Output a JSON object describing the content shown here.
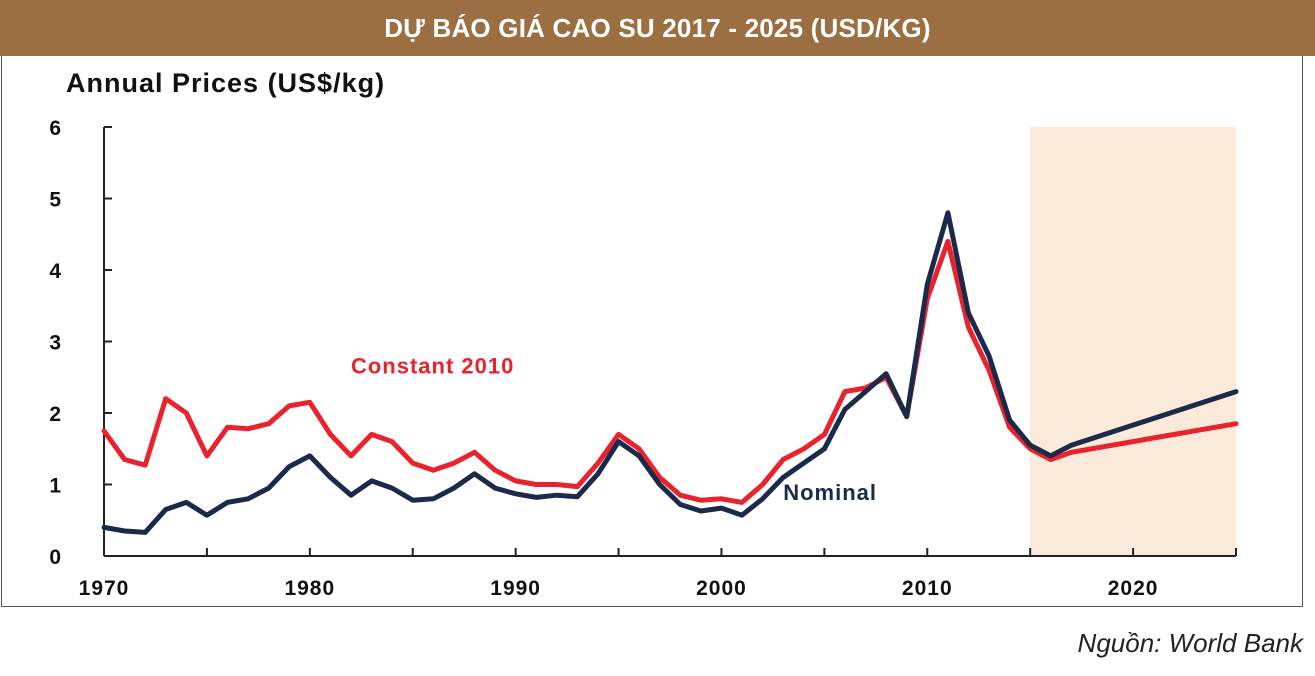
{
  "banner": {
    "title": "DỰ BÁO GIÁ CAO SU 2017 - 2025 (USD/KG)",
    "color": "#9b6f42"
  },
  "source": "Nguồn: World Bank",
  "chart_data": {
    "type": "line",
    "ylabel": "Annual Prices (US$/kg)",
    "ylim": [
      0,
      6
    ],
    "xlim": [
      1970,
      2025
    ],
    "y_ticks": [
      "0",
      "1",
      "2",
      "3",
      "4",
      "5",
      "6"
    ],
    "x_ticks": [
      "1970",
      "1980",
      "1990",
      "2000",
      "2010",
      "2020"
    ],
    "forecast_shading": {
      "from": 2015,
      "to": 2025,
      "color": "#fbe9da"
    },
    "grid": false,
    "series": [
      {
        "name": "Constant 2010",
        "color": "#e8232e",
        "x": [
          1970,
          1971,
          1972,
          1973,
          1974,
          1975,
          1976,
          1977,
          1978,
          1979,
          1980,
          1981,
          1982,
          1983,
          1984,
          1985,
          1986,
          1987,
          1988,
          1989,
          1990,
          1991,
          1992,
          1993,
          1994,
          1995,
          1996,
          1997,
          1998,
          1999,
          2000,
          2001,
          2002,
          2003,
          2004,
          2005,
          2006,
          2007,
          2008,
          2009,
          2010,
          2011,
          2012,
          2013,
          2014,
          2015,
          2016,
          2017,
          2025
        ],
        "values": [
          1.75,
          1.35,
          1.27,
          2.2,
          2.0,
          1.4,
          1.8,
          1.78,
          1.85,
          2.1,
          2.15,
          1.7,
          1.4,
          1.7,
          1.6,
          1.3,
          1.2,
          1.3,
          1.45,
          1.2,
          1.05,
          1.0,
          1.0,
          0.97,
          1.3,
          1.7,
          1.5,
          1.1,
          0.85,
          0.78,
          0.8,
          0.75,
          1.0,
          1.35,
          1.5,
          1.7,
          2.3,
          2.35,
          2.5,
          1.95,
          3.6,
          4.4,
          3.2,
          2.6,
          1.8,
          1.5,
          1.35,
          1.45,
          1.85
        ]
      },
      {
        "name": "Nominal",
        "color": "#1a2a4a",
        "x": [
          1970,
          1971,
          1972,
          1973,
          1974,
          1975,
          1976,
          1977,
          1978,
          1979,
          1980,
          1981,
          1982,
          1983,
          1984,
          1985,
          1986,
          1987,
          1988,
          1989,
          1990,
          1991,
          1992,
          1993,
          1994,
          1995,
          1996,
          1997,
          1998,
          1999,
          2000,
          2001,
          2002,
          2003,
          2004,
          2005,
          2006,
          2007,
          2008,
          2009,
          2010,
          2011,
          2012,
          2013,
          2014,
          2015,
          2016,
          2017,
          2025
        ],
        "values": [
          0.4,
          0.35,
          0.33,
          0.65,
          0.75,
          0.57,
          0.75,
          0.8,
          0.95,
          1.25,
          1.4,
          1.1,
          0.85,
          1.05,
          0.95,
          0.78,
          0.8,
          0.95,
          1.15,
          0.95,
          0.87,
          0.82,
          0.85,
          0.83,
          1.15,
          1.6,
          1.4,
          1.0,
          0.72,
          0.63,
          0.67,
          0.57,
          0.8,
          1.1,
          1.3,
          1.5,
          2.05,
          2.3,
          2.55,
          1.95,
          3.8,
          4.8,
          3.4,
          2.8,
          1.9,
          1.55,
          1.4,
          1.55,
          2.3
        ]
      }
    ],
    "annotations": [
      {
        "text": "Constant 2010",
        "series": "Constant 2010",
        "x": 1982,
        "y": 2.55
      },
      {
        "text": "Nominal",
        "series": "Nominal",
        "x": 2003,
        "y": 0.78
      }
    ]
  }
}
